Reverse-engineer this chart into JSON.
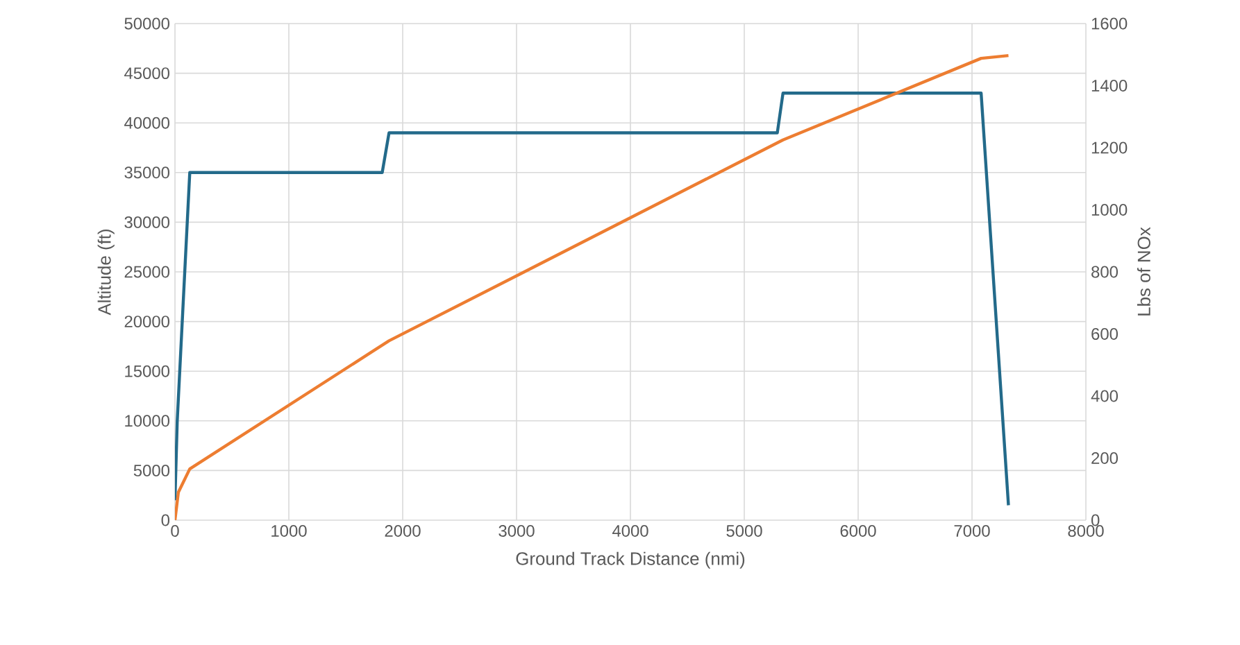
{
  "chart_data": {
    "type": "line",
    "xlabel": "Ground Track Distance (nmi)",
    "ylabel": "Altitude (ft)",
    "y2label": "Lbs of NOx",
    "xlim": [
      0,
      8000
    ],
    "xticks": [
      0,
      1000,
      2000,
      3000,
      4000,
      5000,
      6000,
      7000,
      8000
    ],
    "ylim": [
      0,
      50000
    ],
    "yticks": [
      0,
      5000,
      10000,
      15000,
      20000,
      25000,
      30000,
      35000,
      40000,
      45000,
      50000
    ],
    "y2lim": [
      0,
      1600
    ],
    "y2ticks": [
      0,
      200,
      400,
      600,
      800,
      1000,
      1200,
      1400,
      1600
    ],
    "grid": true,
    "series": [
      {
        "color": "#236a8a",
        "x": [
          0,
          20,
          130,
          1820,
          1880,
          5290,
          5340,
          7080,
          7320
        ],
        "values": [
          2000,
          10000,
          35000,
          35000,
          39000,
          39000,
          43000,
          43000,
          1500
        ]
      },
      {
        "color": "#ed7d31",
        "axis": "y2",
        "x": [
          0,
          30,
          130,
          1880,
          5340,
          7080,
          7320
        ],
        "values": [
          0,
          90,
          165,
          578,
          1225,
          1488,
          1497
        ]
      }
    ]
  }
}
